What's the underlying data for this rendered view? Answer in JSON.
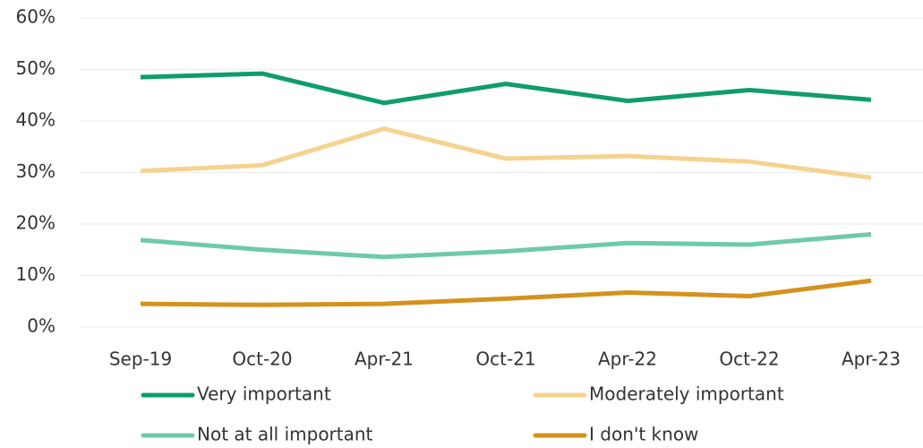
{
  "chart_data": {
    "type": "line",
    "categories": [
      "Sep-19",
      "Oct-20",
      "Apr-21",
      "Oct-21",
      "Apr-22",
      "Oct-22",
      "Apr-23"
    ],
    "series": [
      {
        "name": "Very important",
        "color": "#0f9d6b",
        "values": [
          48.5,
          49.2,
          43.5,
          47.2,
          43.9,
          46.0,
          44.1
        ]
      },
      {
        "name": "Moderately important",
        "color": "#f5d38f",
        "values": [
          30.3,
          31.4,
          38.5,
          32.7,
          33.2,
          32.1,
          29.0
        ]
      },
      {
        "name": "Not at all important",
        "color": "#6fcaa9",
        "values": [
          16.9,
          15.0,
          13.6,
          14.7,
          16.3,
          16.0,
          18.0
        ]
      },
      {
        "name": "I don't know",
        "color": "#d4921e",
        "values": [
          4.5,
          4.3,
          4.5,
          5.5,
          6.7,
          6.0,
          9.0
        ]
      }
    ],
    "ylim": [
      0,
      60
    ],
    "yticks": [
      {
        "value": 0,
        "label": "0%"
      },
      {
        "value": 10,
        "label": "10%"
      },
      {
        "value": 20,
        "label": "20%"
      },
      {
        "value": 30,
        "label": "30%"
      },
      {
        "value": 40,
        "label": "40%"
      },
      {
        "value": 50,
        "label": "50%"
      },
      {
        "value": 60,
        "label": "60%"
      }
    ],
    "grid": true
  }
}
